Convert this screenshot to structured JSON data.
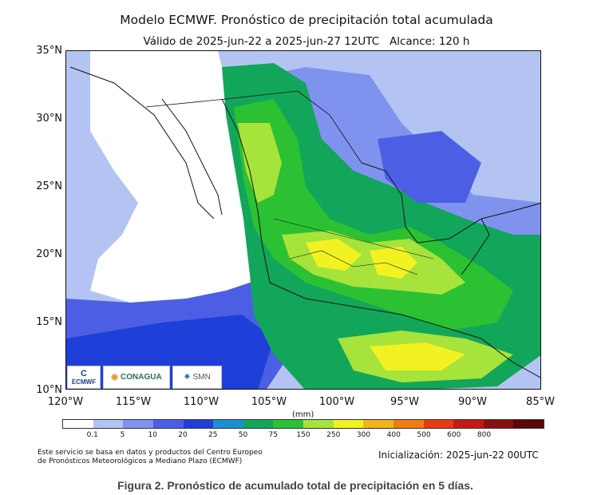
{
  "title": "Modelo ECMWF. Pronóstico de precipitación total acumulada",
  "subtitle": "Válido de 2025-jun-22 a 2025-jun-27 12UTC   Alcance: 120 h",
  "map": {
    "lat_labels": [
      "35°N",
      "30°N",
      "25°N",
      "20°N",
      "15°N",
      "10°N"
    ],
    "lon_labels": [
      "120°W",
      "115°W",
      "110°W",
      "105°W",
      "100°W",
      "95°W",
      "90°W",
      "85°W"
    ],
    "extent": {
      "lon": [
        -120,
        -85
      ],
      "lat": [
        10,
        35
      ]
    }
  },
  "colorbar": {
    "unit": "(mm)",
    "ticks": [
      "0.1",
      "5",
      "10",
      "20",
      "25",
      "50",
      "75",
      "150",
      "250",
      "300",
      "400",
      "500",
      "600",
      "800"
    ],
    "colors": [
      "#ffffff",
      "#b3c4f2",
      "#7f93ee",
      "#4c5fe4",
      "#1f3fd9",
      "#1b8fd6",
      "#12a65a",
      "#2bc133",
      "#a6e33b",
      "#f2f222",
      "#f2b51a",
      "#ef7d14",
      "#e83a13",
      "#c21a14",
      "#8a0f0f",
      "#5a0707"
    ]
  },
  "logos": {
    "ecmwf": "ECMWF",
    "conagua": "CONAGUA",
    "smn": "SMN"
  },
  "footnote": {
    "line1": "Este servicio se basa en datos y productos del Centro Europeo",
    "line2": "de Pronósticos Meteorológicos a Mediano Plazo (ECMWF)"
  },
  "initialization": "Inicialización: 2025-jun-22 00UTC",
  "caption": "Figura 2. Pronóstico de acumulado total de precipitación en 5 días."
}
